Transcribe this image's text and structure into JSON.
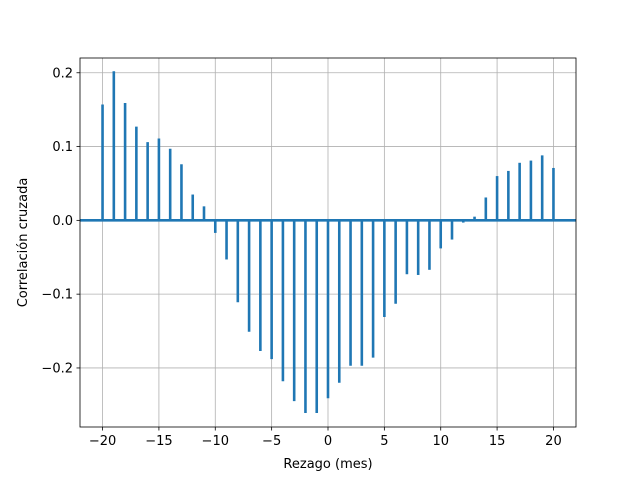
{
  "chart_data": {
    "type": "bar",
    "subtype": "stem",
    "xlabel": "Rezago (mes)",
    "ylabel": "Correlación cruzada",
    "xlim": [
      -22,
      22
    ],
    "ylim": [
      -0.28,
      0.22
    ],
    "x_ticks": [
      -20,
      -15,
      -10,
      -5,
      0,
      5,
      10,
      15,
      20
    ],
    "x_tick_labels": [
      "−20",
      "−15",
      "−10",
      "−5",
      "0",
      "5",
      "10",
      "15",
      "20"
    ],
    "y_ticks": [
      -0.2,
      -0.1,
      0.0,
      0.1,
      0.2
    ],
    "y_tick_labels": [
      "−0.2",
      "−0.1",
      "0.0",
      "0.1",
      "0.2"
    ],
    "grid": true,
    "baseline": 0,
    "color": "#1f77b4",
    "x": [
      -20,
      -19,
      -18,
      -17,
      -16,
      -15,
      -14,
      -13,
      -12,
      -11,
      -10,
      -9,
      -8,
      -7,
      -6,
      -5,
      -4,
      -3,
      -2,
      -1,
      0,
      1,
      2,
      3,
      4,
      5,
      6,
      7,
      8,
      9,
      10,
      11,
      12,
      13,
      14,
      15,
      16,
      17,
      18,
      19,
      20
    ],
    "values": [
      0.157,
      0.202,
      0.159,
      0.127,
      0.106,
      0.111,
      0.097,
      0.076,
      0.035,
      0.019,
      -0.017,
      -0.053,
      -0.111,
      -0.151,
      -0.177,
      -0.188,
      -0.218,
      -0.245,
      -0.261,
      -0.261,
      -0.241,
      -0.22,
      -0.197,
      -0.197,
      -0.186,
      -0.131,
      -0.113,
      -0.073,
      -0.074,
      -0.067,
      -0.038,
      -0.026,
      -0.003,
      0.005,
      0.031,
      0.06,
      0.067,
      0.078,
      0.081,
      0.088,
      0.071
    ]
  }
}
